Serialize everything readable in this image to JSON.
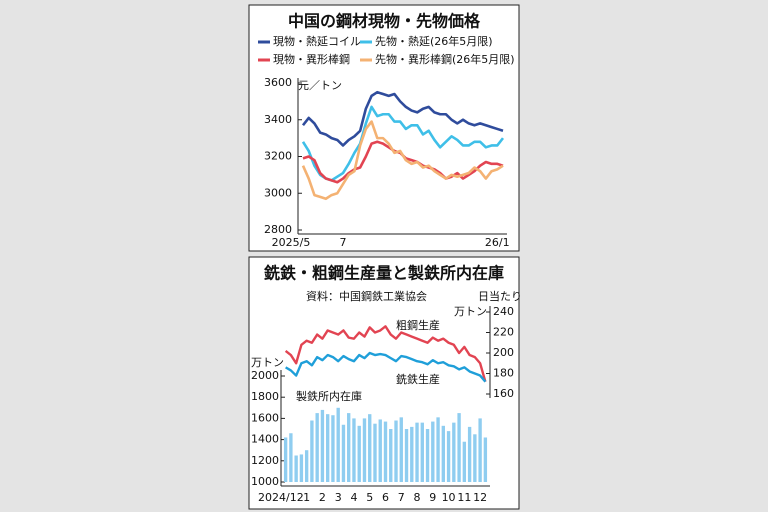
{
  "chart_data": [
    {
      "type": "line",
      "title": "中国の鋼材現物・先物価格",
      "y_label": "元／トン",
      "categories": [
        "2025/5",
        null,
        null,
        null,
        null,
        null,
        null,
        "7",
        null,
        null,
        null,
        null,
        null,
        null,
        null,
        null,
        null,
        null,
        null,
        null,
        null,
        null,
        null,
        null,
        null,
        null,
        null,
        null,
        null,
        null,
        null,
        null,
        null,
        null,
        "26/1",
        null
      ],
      "series": [
        {
          "name": "現物・熱延コイル",
          "color": "#2f4c9c",
          "values": [
            3370,
            3410,
            3380,
            3330,
            3320,
            3300,
            3290,
            3260,
            3290,
            3310,
            3340,
            3460,
            3530,
            3550,
            3540,
            3530,
            3540,
            3500,
            3470,
            3450,
            3440,
            3460,
            3470,
            3440,
            3430,
            3430,
            3400,
            3380,
            3400,
            3380,
            3370,
            3380,
            3370,
            3360,
            3350,
            3340
          ]
        },
        {
          "name": "先物・熱延(26年5月限)",
          "color": "#3fbfe8",
          "values": [
            3280,
            3230,
            3150,
            3100,
            3080,
            3070,
            3090,
            3110,
            3160,
            3220,
            3270,
            3380,
            3470,
            3420,
            3430,
            3430,
            3390,
            3390,
            3350,
            3370,
            3370,
            3320,
            3340,
            3290,
            3250,
            3280,
            3310,
            3290,
            3260,
            3260,
            3280,
            3280,
            3250,
            3260,
            3260,
            3300
          ]
        },
        {
          "name": "現物・異形棒鋼",
          "color": "#e24452",
          "values": [
            3190,
            3200,
            3180,
            3110,
            3080,
            3070,
            3060,
            3080,
            3110,
            3130,
            3140,
            3200,
            3270,
            3280,
            3270,
            3250,
            3230,
            3220,
            3190,
            3180,
            3170,
            3150,
            3140,
            3130,
            3110,
            3080,
            3090,
            3110,
            3080,
            3100,
            3120,
            3150,
            3170,
            3160,
            3160,
            3150
          ]
        },
        {
          "name": "先物・異形棒鋼(26年5月限)",
          "color": "#f4b273",
          "values": [
            3150,
            3080,
            2990,
            2980,
            2970,
            2990,
            3000,
            3050,
            3100,
            3120,
            3260,
            3350,
            3390,
            3300,
            3300,
            3270,
            3220,
            3230,
            3180,
            3160,
            3170,
            3140,
            3150,
            3120,
            3100,
            3080,
            3100,
            3090,
            3100,
            3110,
            3140,
            3120,
            3080,
            3120,
            3130,
            3150
          ]
        }
      ],
      "ylim": [
        2800,
        3600
      ],
      "yticks": [
        2800,
        3000,
        3200,
        3400,
        3600
      ]
    },
    {
      "type": "combo",
      "title": "銑鉄・粗鋼生産量と製鉄所内在庫",
      "source": "資料：中国鋼鉄工業協会",
      "y_label": "万トン",
      "y2_note": "日当たり",
      "y2_label": "万トン",
      "categories": [
        null,
        "2024/12",
        null,
        null,
        "1",
        null,
        null,
        "2",
        null,
        null,
        "3",
        null,
        null,
        "4",
        null,
        null,
        "5",
        null,
        null,
        "6",
        null,
        null,
        "7",
        null,
        null,
        "8",
        null,
        null,
        "9",
        null,
        null,
        "10",
        null,
        null,
        "11",
        null,
        null,
        "12",
        null
      ],
      "series": [
        {
          "name": "製鉄所内在庫",
          "type": "bar",
          "color": "#8fcdf0",
          "values": [
            1420,
            1460,
            1250,
            1260,
            1300,
            1580,
            1650,
            1680,
            1640,
            1630,
            1700,
            1540,
            1650,
            1600,
            1530,
            1600,
            1640,
            1550,
            1590,
            1570,
            1500,
            1580,
            1610,
            1500,
            1520,
            1560,
            1560,
            1500,
            1570,
            1610,
            1530,
            1480,
            1560,
            1650,
            1380,
            1520,
            1450,
            1600,
            1420
          ]
        },
        {
          "name": "粗鋼生産",
          "type": "line",
          "axis": "y2",
          "color": "#e24452",
          "values": [
            202,
            198,
            190,
            208,
            212,
            210,
            218,
            214,
            222,
            220,
            218,
            222,
            215,
            214,
            220,
            216,
            225,
            220,
            222,
            226,
            218,
            214,
            220,
            218,
            216,
            214,
            212,
            210,
            215,
            212,
            214,
            210,
            208,
            200,
            206,
            198,
            196,
            190,
            172
          ]
        },
        {
          "name": "銑鉄生産",
          "type": "line",
          "axis": "y2",
          "color": "#1f9fd9",
          "values": [
            186,
            183,
            178,
            190,
            192,
            188,
            196,
            193,
            198,
            196,
            192,
            197,
            194,
            192,
            198,
            195,
            200,
            198,
            199,
            198,
            195,
            192,
            197,
            196,
            194,
            192,
            191,
            189,
            193,
            190,
            191,
            188,
            187,
            184,
            186,
            182,
            180,
            178,
            172
          ]
        }
      ],
      "ylim": [
        1000,
        2000
      ],
      "yticks": [
        1000,
        1200,
        1400,
        1600,
        1800,
        2000
      ],
      "y2lim": [
        160,
        240
      ],
      "y2ticks": [
        160,
        180,
        200,
        220,
        240
      ]
    }
  ]
}
